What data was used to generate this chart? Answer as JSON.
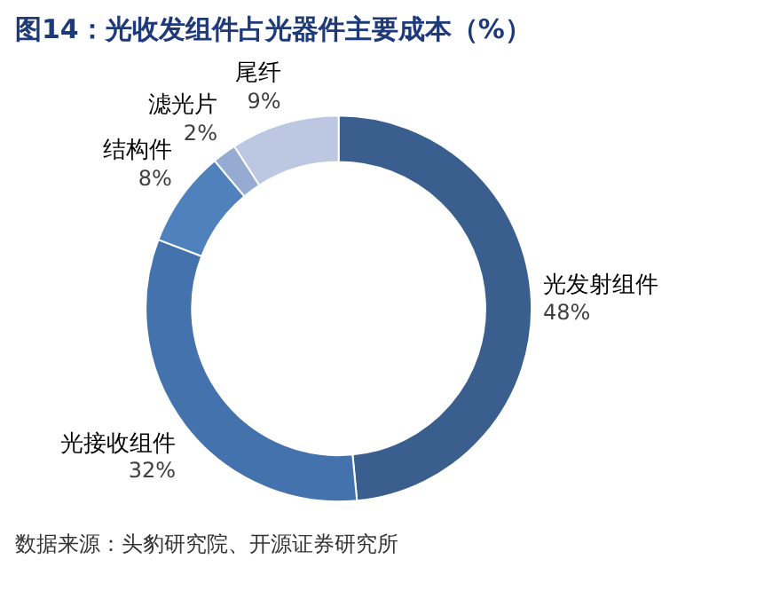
{
  "chart_data": {
    "type": "donut",
    "title": "图14：光收发组件占光器件主要成本（%）",
    "categories": [
      "光发射组件",
      "光接收组件",
      "结构件",
      "滤光片",
      "尾纤"
    ],
    "values": [
      48,
      32,
      8,
      2,
      9
    ],
    "value_labels": [
      "48%",
      "32%",
      "8%",
      "2%",
      "9%"
    ],
    "colors": [
      "#3a5f8f",
      "#4472ad",
      "#4f81bd",
      "#95abd1",
      "#bcc8e2"
    ],
    "annotations": [
      "数据来源：头豹研究院、开源证券研究所"
    ]
  }
}
